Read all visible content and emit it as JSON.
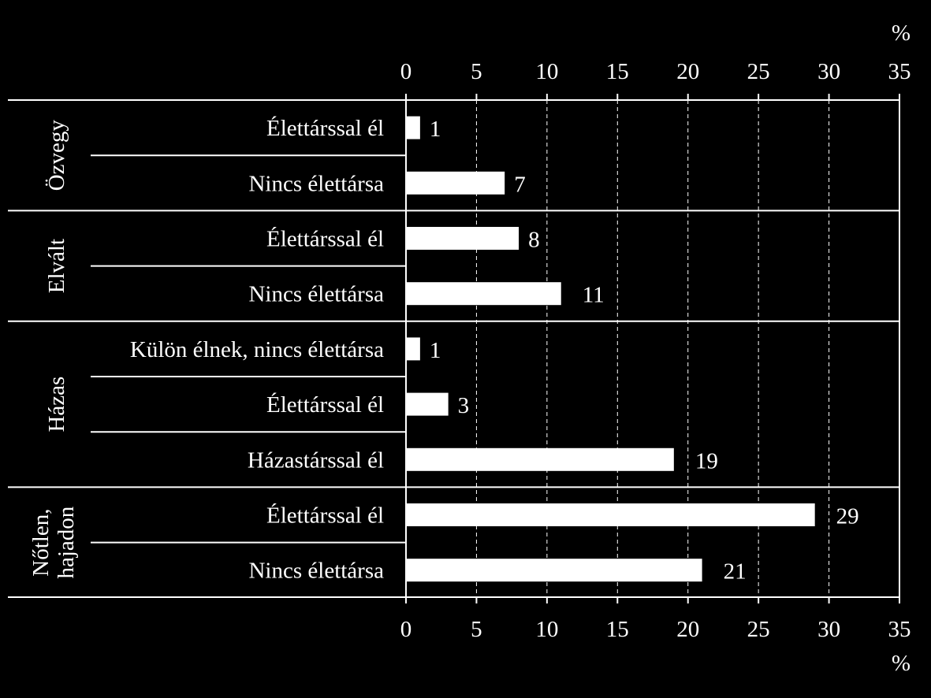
{
  "chart_data": {
    "type": "bar",
    "orientation": "horizontal",
    "unit": "%",
    "xlim": [
      0,
      35
    ],
    "ticks": [
      "0",
      "5",
      "10",
      "15",
      "20",
      "25",
      "30",
      "35"
    ],
    "grid": "vertical dashed",
    "colors": {
      "background": "#000000",
      "bar": "#ffffff",
      "text": "#ffffff"
    },
    "groups": [
      {
        "label": "Özvegy",
        "categories": [
          {
            "label": "Élettárssal él",
            "value": 1
          },
          {
            "label": "Nincs élettársa",
            "value": 7
          }
        ]
      },
      {
        "label": "Elvált",
        "categories": [
          {
            "label": "Élettárssal él",
            "value": 8
          },
          {
            "label": "Nincs élettársa",
            "value": 11
          }
        ]
      },
      {
        "label": "Házas",
        "categories": [
          {
            "label": "Külön élnek, nincs élettársa",
            "value": 1
          },
          {
            "label": "Élettárssal él",
            "value": 3
          },
          {
            "label": "Házastárssal él",
            "value": 19
          }
        ]
      },
      {
        "label": "Nőtlen, hajadon",
        "categories": [
          {
            "label": "Élettárssal él",
            "value": 29
          },
          {
            "label": "Nincs élettársa",
            "value": 21
          }
        ]
      }
    ]
  }
}
